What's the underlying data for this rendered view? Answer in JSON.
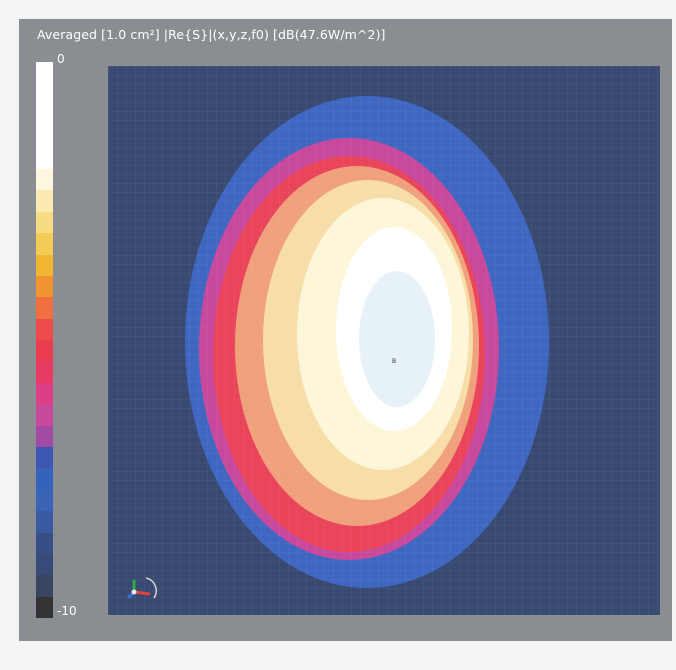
{
  "view": {
    "title": "Averaged [1.0 cm²] |Re{S}|(x,y,z,f0) [dB(47.6W/m^2)]",
    "background_color": "#8a8d92",
    "plot_background_color": "#394a72"
  },
  "colorbar": {
    "max_label": "0",
    "min_label": "-10",
    "colors": [
      "#ffffff",
      "#ffffff",
      "#ffffff",
      "#ffffff",
      "#ffffff",
      "#fdf7e0",
      "#faeab2",
      "#f7dc84",
      "#f4cc55",
      "#f1b733",
      "#f19432",
      "#f07040",
      "#ee4b4b",
      "#ea3d4d",
      "#e83a62",
      "#db3f86",
      "#c8489c",
      "#a34aa4",
      "#3d57b0",
      "#3463bb",
      "#3a64b6",
      "#3a5aa0",
      "#384f85",
      "#374b78",
      "#39455f",
      "#333333"
    ]
  },
  "plot": {
    "center_marker": "B",
    "contour_colors": [
      "#3f67c2",
      "#c7489c",
      "#e9445a",
      "#f0a07b",
      "#f7dda7",
      "#fef6d9",
      "#ffffff",
      "#e7f1f8"
    ]
  },
  "axes_widget": {
    "icon": "coordinate-axes-icon"
  }
}
